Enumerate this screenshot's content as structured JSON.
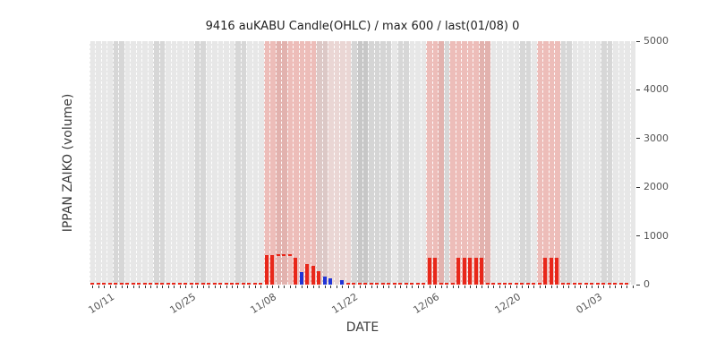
{
  "chart_data": {
    "type": "bar",
    "title": "9416 auKABU Candle(OHLC) / max 600 / last(01/08) 0",
    "xlabel": "DATE",
    "ylabel": "IPPAN ZAIKO (volume)",
    "ylim": [
      0,
      5000
    ],
    "yticks": [
      0,
      1000,
      2000,
      3000,
      4000,
      5000
    ],
    "x_axis": {
      "start": "10/08",
      "end": "01/10",
      "tick_labels": [
        "10/11",
        "10/25",
        "11/08",
        "11/22",
        "12/06",
        "12/20",
        "01/03"
      ]
    },
    "bars": [
      {
        "date": "11/07",
        "value": 600,
        "color": "red"
      },
      {
        "date": "11/08",
        "value": 600,
        "color": "red"
      },
      {
        "date": "11/12",
        "value": 560,
        "color": "red"
      },
      {
        "date": "11/13",
        "value": 260,
        "color": "blue"
      },
      {
        "date": "11/14",
        "value": 420,
        "color": "red"
      },
      {
        "date": "11/15",
        "value": 390,
        "color": "red"
      },
      {
        "date": "11/16",
        "value": 280,
        "color": "red"
      },
      {
        "date": "11/17",
        "value": 170,
        "color": "blue"
      },
      {
        "date": "11/18",
        "value": 120,
        "color": "blue"
      },
      {
        "date": "11/20",
        "value": 90,
        "color": "blue"
      },
      {
        "date": "12/05",
        "value": 560,
        "color": "red"
      },
      {
        "date": "12/06",
        "value": 560,
        "color": "red"
      },
      {
        "date": "12/10",
        "value": 560,
        "color": "red"
      },
      {
        "date": "12/11",
        "value": 560,
        "color": "red"
      },
      {
        "date": "12/12",
        "value": 560,
        "color": "red"
      },
      {
        "date": "12/13",
        "value": 560,
        "color": "red"
      },
      {
        "date": "12/14",
        "value": 560,
        "color": "red"
      },
      {
        "date": "12/25",
        "value": 560,
        "color": "red"
      },
      {
        "date": "12/26",
        "value": 560,
        "color": "red"
      },
      {
        "date": "12/27",
        "value": 560,
        "color": "red"
      }
    ],
    "flat_segments": [
      {
        "start": "10/08",
        "end": "11/06",
        "value": 0
      },
      {
        "start": "11/09",
        "end": "11/11",
        "value": 600
      },
      {
        "start": "11/21",
        "end": "12/04",
        "value": 0
      },
      {
        "start": "12/07",
        "end": "12/09",
        "value": 0
      },
      {
        "start": "12/15",
        "end": "12/24",
        "value": 0
      },
      {
        "start": "12/28",
        "end": "01/08",
        "value": 0
      }
    ],
    "highlight_bands": [
      {
        "start": "11/07",
        "end": "11/16",
        "type": "pink_strong"
      },
      {
        "start": "11/16",
        "end": "11/22",
        "type": "pink_light"
      },
      {
        "start": "11/22",
        "end": "11/29",
        "type": "gray"
      },
      {
        "start": "12/05",
        "end": "12/08",
        "type": "pink_strong"
      },
      {
        "start": "12/09",
        "end": "12/16",
        "type": "pink_strong"
      },
      {
        "start": "12/24",
        "end": "12/28",
        "type": "pink_strong"
      }
    ],
    "weekend_shading": [
      "10/12",
      "10/19",
      "10/26",
      "11/02",
      "11/09",
      "11/16",
      "11/23",
      "11/30",
      "12/07",
      "12/14",
      "12/21",
      "12/28",
      "01/04"
    ],
    "colors": {
      "background": "#e7e7e7",
      "grid": "rgba(255,255,255,0.95)",
      "bar_red": "#e8271a",
      "bar_blue": "#2134d6",
      "band_pink_strong": "rgba(255,82,70,0.28)",
      "band_pink_light": "rgba(255,115,100,0.14)",
      "band_gray": "rgba(0,0,0,0.075)",
      "weekend": "rgba(0,0,0,0.065)",
      "tick_text": "#555555"
    }
  }
}
